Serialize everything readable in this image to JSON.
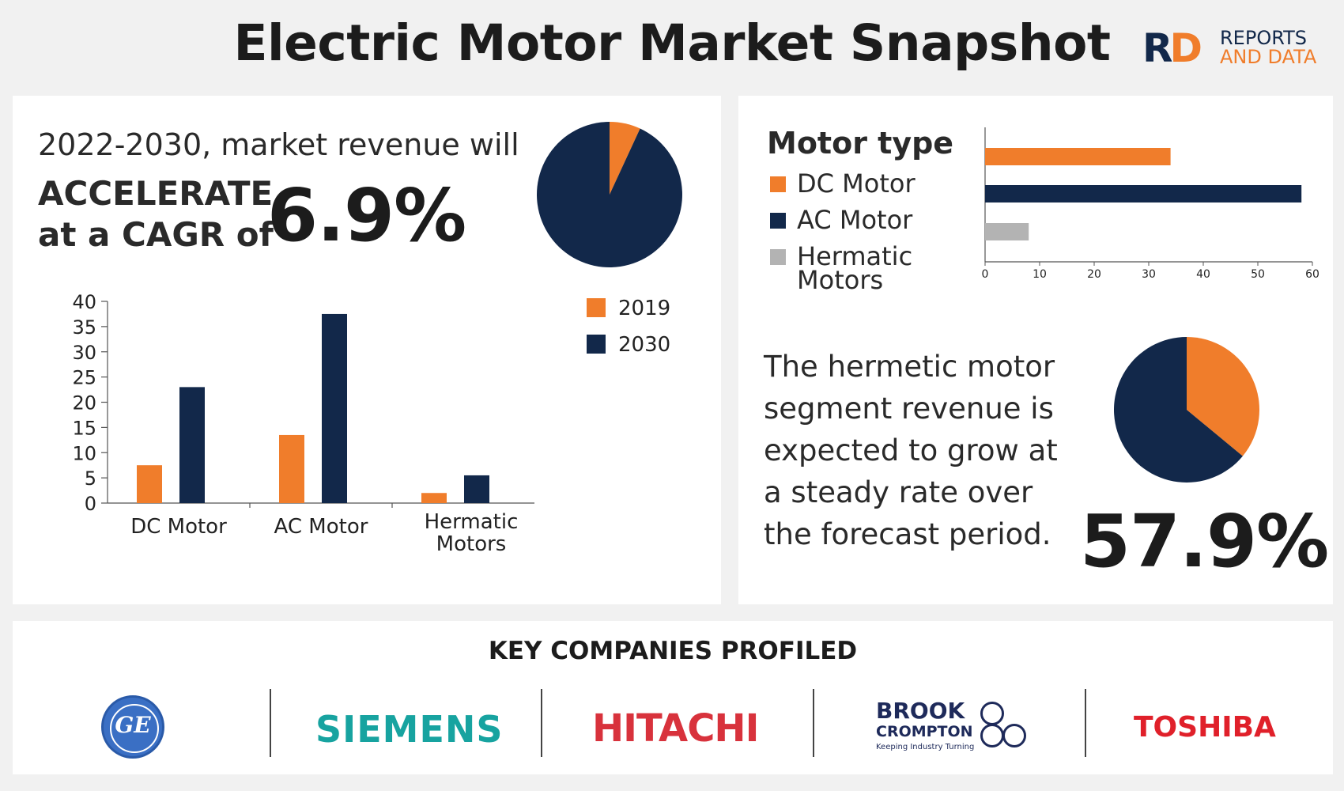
{
  "title": "Electric Motor Market Snapshot",
  "logo": {
    "mark_r": "R",
    "mark_d": "D",
    "line1": "REPORTS",
    "line2": "AND DATA"
  },
  "left_panel": {
    "intro": "2022-2030, market revenue will",
    "accel_line1": "ACCELERATE",
    "accel_line2": "at a CAGR of",
    "cagr": "6.9%"
  },
  "right_panel": {
    "motor_type_title": "Motor type",
    "hermetic_text": "The hermetic motor segment revenue is expected to grow at a steady rate over the forecast period.",
    "share": "57.9%"
  },
  "companies_title": "KEY COMPANIES PROFILED",
  "companies": [
    {
      "name": "GE",
      "color": "#3a6fc4"
    },
    {
      "name": "SIEMENS",
      "color": "#17a3a0"
    },
    {
      "name": "HITACHI",
      "color": "#d8323c"
    },
    {
      "name": "BROOK",
      "line2": "CROMPTON",
      "tagline": "Keeping Industry Turning",
      "color": "#1e2a5a"
    },
    {
      "name": "TOSHIBA",
      "color": "#e0202a"
    }
  ],
  "colors": {
    "orange": "#f07d2b",
    "navy": "#12284a",
    "gray": "#b3b3b3"
  },
  "chart_data": [
    {
      "type": "pie",
      "slices": [
        {
          "label": "",
          "value": 6.9,
          "color": "#f07d2b"
        },
        {
          "label": "",
          "value": 93.1,
          "color": "#12284a"
        }
      ]
    },
    {
      "type": "bar",
      "categories": [
        "DC Motor",
        "AC Motor",
        "Hermatic Motors"
      ],
      "series": [
        {
          "name": "2019",
          "values": [
            7.5,
            13.5,
            2
          ],
          "color": "#f07d2b"
        },
        {
          "name": "2030",
          "values": [
            23,
            37.5,
            5.5
          ],
          "color": "#12284a"
        }
      ],
      "ylim": [
        0,
        40
      ],
      "yticks": [
        0,
        5,
        10,
        15,
        20,
        25,
        30,
        35,
        40
      ],
      "legend": "top-right"
    },
    {
      "type": "bar",
      "orientation": "horizontal",
      "categories": [
        "DC Motor",
        "AC Motor",
        "Hermatic Motors"
      ],
      "values": [
        34,
        58,
        8
      ],
      "colors": [
        "#f07d2b",
        "#12284a",
        "#b3b3b3"
      ],
      "xlim": [
        0,
        60
      ],
      "xticks": [
        0,
        10,
        20,
        30,
        40,
        50,
        60
      ],
      "legend": "left"
    },
    {
      "type": "pie",
      "slices": [
        {
          "label": "",
          "value": 36,
          "color": "#f07d2b"
        },
        {
          "label": "",
          "value": 64,
          "color": "#12284a"
        }
      ]
    }
  ]
}
